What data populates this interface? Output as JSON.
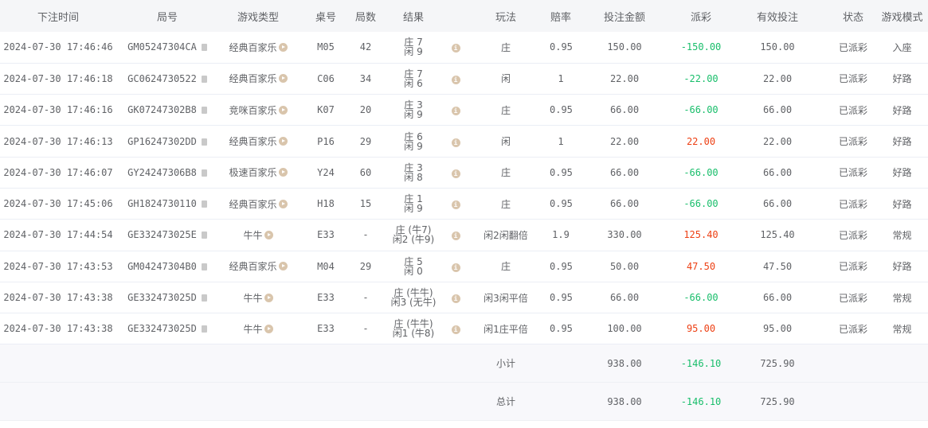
{
  "columns": [
    "下注时间",
    "局号",
    "游戏类型",
    "桌号",
    "局数",
    "结果",
    "",
    "玩法",
    "赔率",
    "投注金额",
    "派彩",
    "有效投注",
    "状态",
    "游戏模式"
  ],
  "colors": {
    "negative": "#19be6b",
    "positive": "#ed4014",
    "header_bg": "#f5f6f8"
  },
  "icons": {
    "copy": "copy-icon",
    "play": "play-icon",
    "info": "info-icon"
  },
  "rows": [
    {
      "time": "2024-07-30 17:46:46",
      "id": "GM05247304CA",
      "type": "经典百家乐",
      "table": "M05",
      "round": "42",
      "res1": "庄 7",
      "res2": "闲 9",
      "play": "庄",
      "odds": "0.95",
      "bet": "150.00",
      "payout": "-150.00",
      "valid": "150.00",
      "status": "已派彩",
      "mode": "入座"
    },
    {
      "time": "2024-07-30 17:46:18",
      "id": "GC0624730522",
      "type": "经典百家乐",
      "table": "C06",
      "round": "34",
      "res1": "庄 7",
      "res2": "闲 6",
      "play": "闲",
      "odds": "1",
      "bet": "22.00",
      "payout": "-22.00",
      "valid": "22.00",
      "status": "已派彩",
      "mode": "好路"
    },
    {
      "time": "2024-07-30 17:46:16",
      "id": "GK07247302B8",
      "type": "竞咪百家乐",
      "table": "K07",
      "round": "20",
      "res1": "庄 3",
      "res2": "闲 9",
      "play": "庄",
      "odds": "0.95",
      "bet": "66.00",
      "payout": "-66.00",
      "valid": "66.00",
      "status": "已派彩",
      "mode": "好路"
    },
    {
      "time": "2024-07-30 17:46:13",
      "id": "GP16247302DD",
      "type": "经典百家乐",
      "table": "P16",
      "round": "29",
      "res1": "庄 6",
      "res2": "闲 9",
      "play": "闲",
      "odds": "1",
      "bet": "22.00",
      "payout": "22.00",
      "valid": "22.00",
      "status": "已派彩",
      "mode": "好路"
    },
    {
      "time": "2024-07-30 17:46:07",
      "id": "GY24247306B8",
      "type": "极速百家乐",
      "table": "Y24",
      "round": "60",
      "res1": "庄 3",
      "res2": "闲 8",
      "play": "庄",
      "odds": "0.95",
      "bet": "66.00",
      "payout": "-66.00",
      "valid": "66.00",
      "status": "已派彩",
      "mode": "好路"
    },
    {
      "time": "2024-07-30 17:45:06",
      "id": "GH1824730110",
      "type": "经典百家乐",
      "table": "H18",
      "round": "15",
      "res1": "庄 1",
      "res2": "闲 9",
      "play": "庄",
      "odds": "0.95",
      "bet": "66.00",
      "payout": "-66.00",
      "valid": "66.00",
      "status": "已派彩",
      "mode": "好路"
    },
    {
      "time": "2024-07-30 17:44:54",
      "id": "GE332473025E",
      "type": "牛牛",
      "table": "E33",
      "round": "-",
      "res1": "庄 (牛7)",
      "res2": "闲2 (牛9)",
      "play": "闲2闲翻倍",
      "odds": "1.9",
      "bet": "330.00",
      "payout": "125.40",
      "valid": "125.40",
      "status": "已派彩",
      "mode": "常规"
    },
    {
      "time": "2024-07-30 17:43:53",
      "id": "GM04247304B0",
      "type": "经典百家乐",
      "table": "M04",
      "round": "29",
      "res1": "庄 5",
      "res2": "闲 0",
      "play": "庄",
      "odds": "0.95",
      "bet": "50.00",
      "payout": "47.50",
      "valid": "47.50",
      "status": "已派彩",
      "mode": "好路"
    },
    {
      "time": "2024-07-30 17:43:38",
      "id": "GE332473025D",
      "type": "牛牛",
      "table": "E33",
      "round": "-",
      "res1": "庄 (牛牛)",
      "res2": "闲3 (无牛)",
      "play": "闲3闲平倍",
      "odds": "0.95",
      "bet": "66.00",
      "payout": "-66.00",
      "valid": "66.00",
      "status": "已派彩",
      "mode": "常规"
    },
    {
      "time": "2024-07-30 17:43:38",
      "id": "GE332473025D",
      "type": "牛牛",
      "table": "E33",
      "round": "-",
      "res1": "庄 (牛牛)",
      "res2": "闲1 (牛8)",
      "play": "闲1庄平倍",
      "odds": "0.95",
      "bet": "100.00",
      "payout": "95.00",
      "valid": "95.00",
      "status": "已派彩",
      "mode": "常规"
    }
  ],
  "summary": [
    {
      "label": "小计",
      "bet": "938.00",
      "payout": "-146.10",
      "valid": "725.90"
    },
    {
      "label": "总计",
      "bet": "938.00",
      "payout": "-146.10",
      "valid": "725.90"
    }
  ]
}
